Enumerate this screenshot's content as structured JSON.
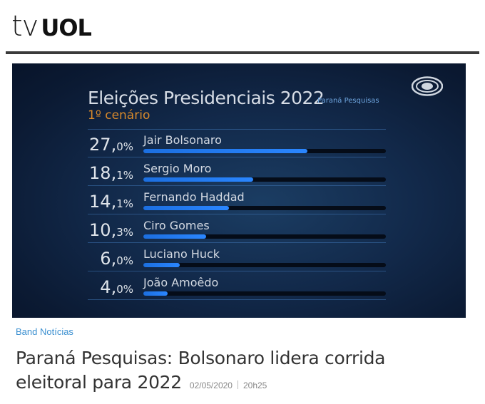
{
  "header": {
    "logo_tv": "tv",
    "logo_uol": "UOL"
  },
  "video": {
    "channel_icon": "band-eye-logo-icon",
    "title": "Eleições Presidenciais 2022",
    "source": "Paraná Pesquisas",
    "subtitle": "1º cenário"
  },
  "chart_data": {
    "type": "bar",
    "title": "Eleições Presidenciais 2022",
    "subtitle": "1º cenário",
    "source": "Paraná Pesquisas",
    "categories": [
      "Jair Bolsonaro",
      "Sergio Moro",
      "Fernando Haddad",
      "Ciro Gomes",
      "Luciano Huck",
      "João Amoêdo"
    ],
    "values": [
      27.0,
      18.1,
      14.1,
      10.3,
      6.0,
      4.0
    ],
    "value_labels_int": [
      "27,",
      "18,",
      "14,",
      "10,",
      "6,",
      "4,"
    ],
    "value_labels_dec": [
      "0%",
      "1%",
      "1%",
      "3%",
      "0%",
      "0%"
    ],
    "bar_color": "#2a86ff",
    "track_color": "#050c18",
    "title_color": "#d7dde6",
    "subtitle_color": "#d98a2b",
    "max_value": 40
  },
  "article": {
    "category": "Band Notícias",
    "title": "Paraná Pesquisas: Bolsonaro lidera corrida eleitoral para 2022",
    "date": "02/05/2020",
    "time": "20h25"
  }
}
